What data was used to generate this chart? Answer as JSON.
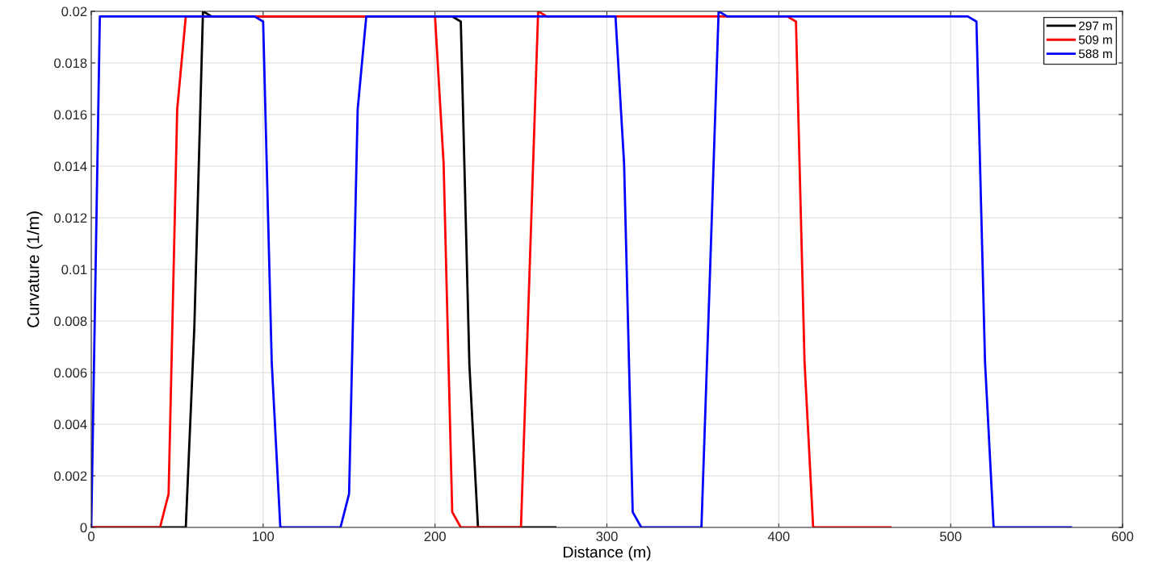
{
  "chart_data": {
    "type": "line",
    "xlabel": "Distance (m)",
    "ylabel": "Curvature (1/m)",
    "xlim": [
      0,
      600
    ],
    "ylim": [
      0,
      0.02
    ],
    "xticks": [
      0,
      100,
      200,
      300,
      400,
      500,
      600
    ],
    "yticks": [
      {
        "value": 0,
        "label": "0"
      },
      {
        "value": 0.002,
        "label": "0.002"
      },
      {
        "value": 0.004,
        "label": "0.004"
      },
      {
        "value": 0.006,
        "label": "0.006"
      },
      {
        "value": 0.008,
        "label": "0.008"
      },
      {
        "value": 0.01,
        "label": "0.01"
      },
      {
        "value": 0.012,
        "label": "0.012"
      },
      {
        "value": 0.014,
        "label": "0.014"
      },
      {
        "value": 0.016,
        "label": "0.016"
      },
      {
        "value": 0.018,
        "label": "0.018"
      },
      {
        "value": 0.02,
        "label": "0.02"
      }
    ],
    "grid": true,
    "legend": "top right",
    "line_style": "solid",
    "marker": "none",
    "series": [
      {
        "name": "297 m",
        "color": "#000000",
        "x": [
          0,
          55,
          60,
          65,
          70,
          210,
          215,
          220,
          225,
          270
        ],
        "values": [
          0,
          0,
          0.0078,
          0.02,
          0.0198,
          0.0198,
          0.0196,
          0.0063,
          0,
          0
        ]
      },
      {
        "name": "509 m",
        "color": "#ff0000",
        "x": [
          0,
          40,
          45,
          50,
          55,
          200,
          205,
          210,
          215,
          250,
          255,
          260,
          265,
          405,
          410,
          415,
          420,
          465
        ],
        "values": [
          0,
          0,
          0.0013,
          0.0162,
          0.0198,
          0.0198,
          0.0141,
          0.0006,
          0,
          0,
          0.0099,
          0.02,
          0.0198,
          0.0198,
          0.0196,
          0.0064,
          0,
          0
        ]
      },
      {
        "name": "588 m",
        "color": "#0000ff",
        "x": [
          0,
          5,
          95,
          100,
          105,
          110,
          145,
          150,
          155,
          160,
          305,
          310,
          315,
          320,
          355,
          360,
          365,
          370,
          510,
          515,
          520,
          525,
          570
        ],
        "values": [
          0,
          0.0198,
          0.0198,
          0.0196,
          0.0064,
          0,
          0,
          0.0013,
          0.0162,
          0.0198,
          0.0198,
          0.0141,
          0.0006,
          0,
          0,
          0.0099,
          0.02,
          0.0198,
          0.0198,
          0.0196,
          0.0064,
          0,
          0
        ]
      }
    ]
  }
}
